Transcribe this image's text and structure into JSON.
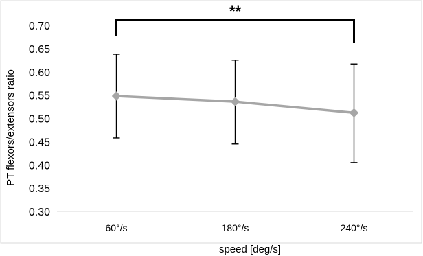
{
  "chart_data": {
    "type": "line",
    "categories": [
      "60°/s",
      "180°/s",
      "240°/s"
    ],
    "series": [
      {
        "values": [
          0.548,
          0.536,
          0.512
        ],
        "error_upper": [
          0.638,
          0.625,
          0.617
        ],
        "error_lower": [
          0.458,
          0.445,
          0.405
        ],
        "color": "#a6a6a6",
        "marker": "diamond"
      }
    ],
    "xlabel": "speed [deg/s]",
    "ylabel": "PT flexors/extensors ratio",
    "ylim": [
      0.3,
      0.7
    ],
    "yticks": [
      "0.30",
      "0.35",
      "0.40",
      "0.45",
      "0.50",
      "0.55",
      "0.60",
      "0.65",
      "0.70"
    ],
    "grid": false,
    "legend": "none",
    "significance_bracket": {
      "from_category": "60°/s",
      "to_category": "240°/s",
      "label": "**"
    },
    "frame_color": "#d9d9d9",
    "error_bar_color": "#000000",
    "bracket_color": "#000000"
  }
}
